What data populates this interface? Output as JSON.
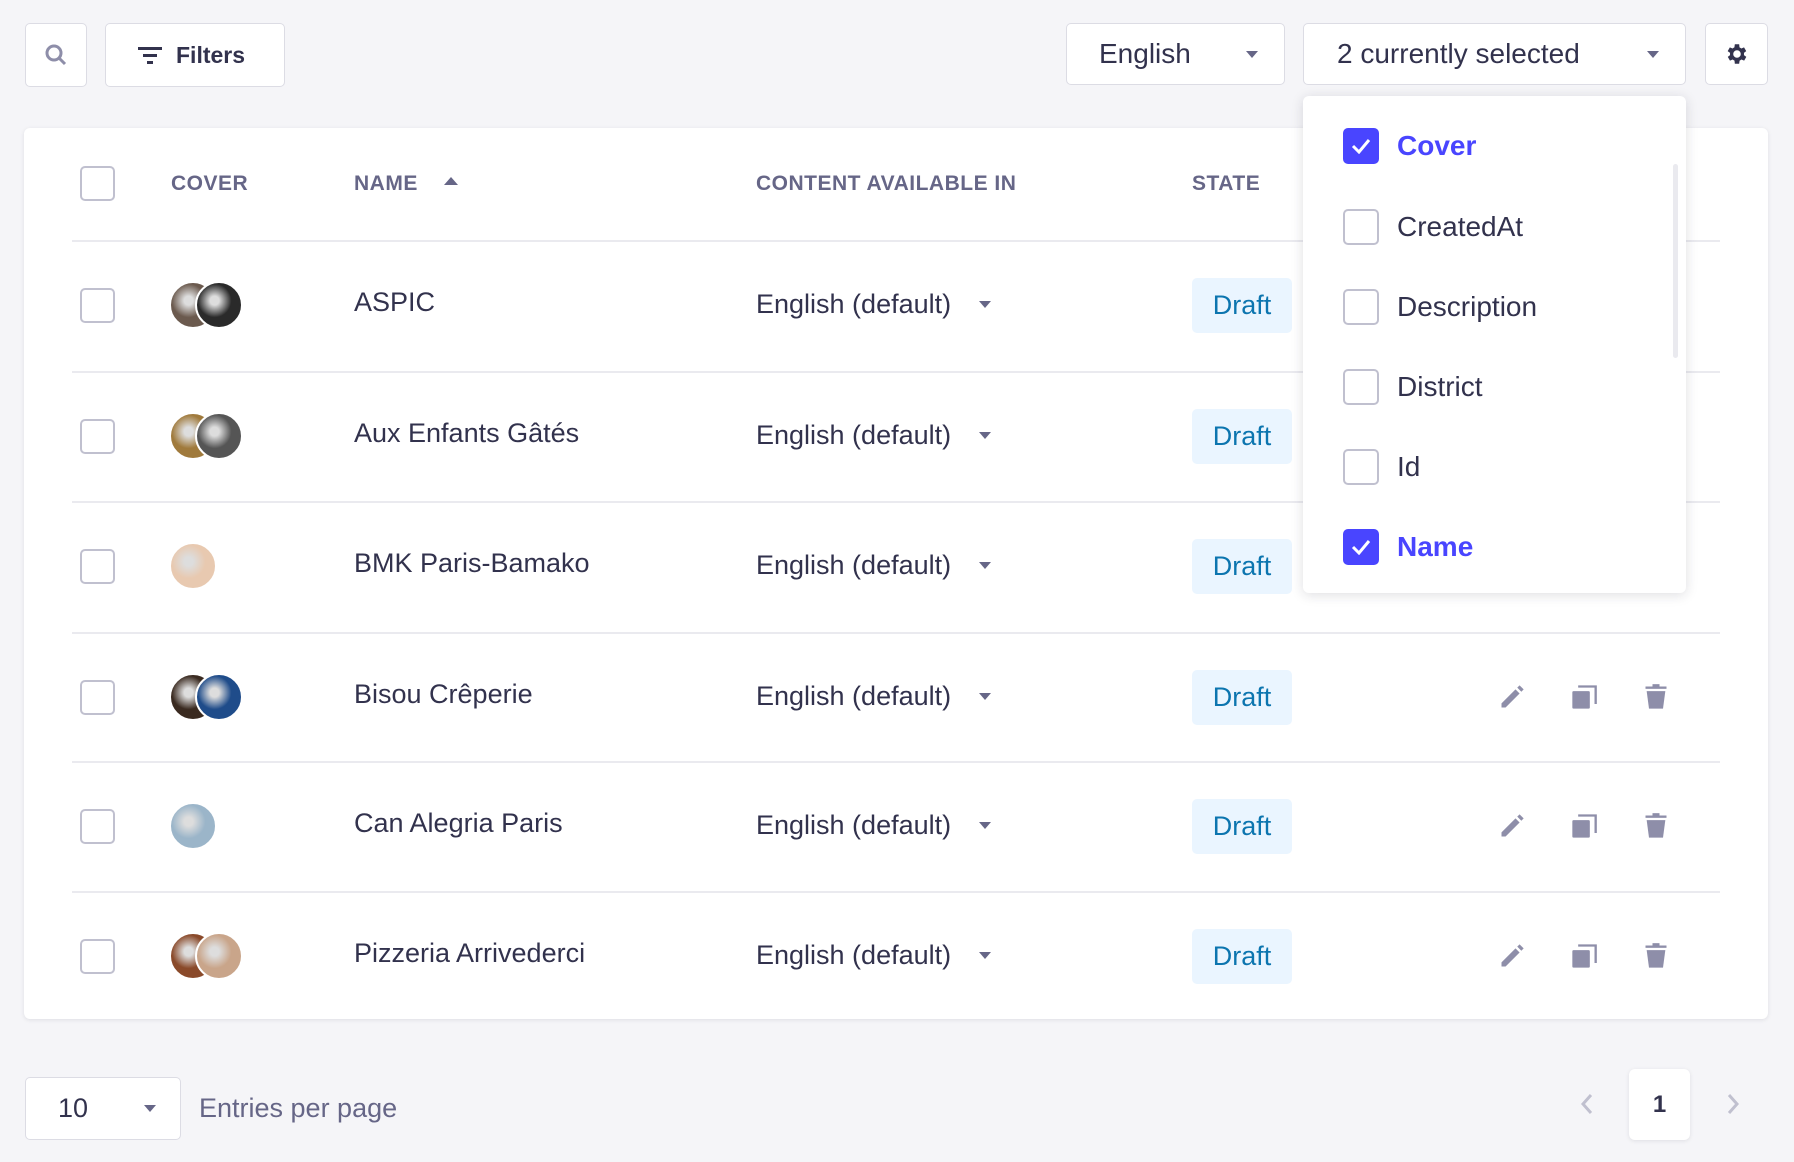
{
  "toolbar": {
    "filters_label": "Filters",
    "locale": "English",
    "columns_selected": "2 currently selected"
  },
  "table": {
    "headers": {
      "cover": "COVER",
      "name": "NAME",
      "content": "CONTENT AVAILABLE IN",
      "state": "STATE"
    },
    "sort": {
      "column": "name",
      "direction": "ascending"
    },
    "rows": [
      {
        "name": "ASPIC",
        "content": "English (default)",
        "state": "Draft",
        "cover": [
          "#6b5a4e",
          "#2a2a2a"
        ]
      },
      {
        "name": "Aux Enfants Gâtés",
        "content": "English (default)",
        "state": "Draft",
        "cover": [
          "#a07a3c",
          "#555555"
        ]
      },
      {
        "name": "BMK Paris-Bamako",
        "content": "English (default)",
        "state": "Draft",
        "cover": [
          "#e8c9b0"
        ]
      },
      {
        "name": "Bisou Crêperie",
        "content": "English (default)",
        "state": "Draft",
        "cover": [
          "#3a2a20",
          "#1f4c8a"
        ]
      },
      {
        "name": "Can Alegria Paris",
        "content": "English (default)",
        "state": "Draft",
        "cover": [
          "#9bb5c9"
        ]
      },
      {
        "name": "Pizzeria Arrivederci",
        "content": "English (default)",
        "state": "Draft",
        "cover": [
          "#8a4a2a",
          "#c9a58a"
        ]
      }
    ]
  },
  "columns_menu": [
    {
      "label": "Cover",
      "checked": true
    },
    {
      "label": "CreatedAt",
      "checked": false
    },
    {
      "label": "Description",
      "checked": false
    },
    {
      "label": "District",
      "checked": false
    },
    {
      "label": "Id",
      "checked": false
    },
    {
      "label": "Name",
      "checked": true
    }
  ],
  "footer": {
    "page_size": "10",
    "entries_label": "Entries per page",
    "current_page": "1"
  },
  "colors": {
    "primary": "#4945ff",
    "badge_bg": "#eaf5ff",
    "badge_text": "#0c75af",
    "icon": "#8e8ea9"
  }
}
